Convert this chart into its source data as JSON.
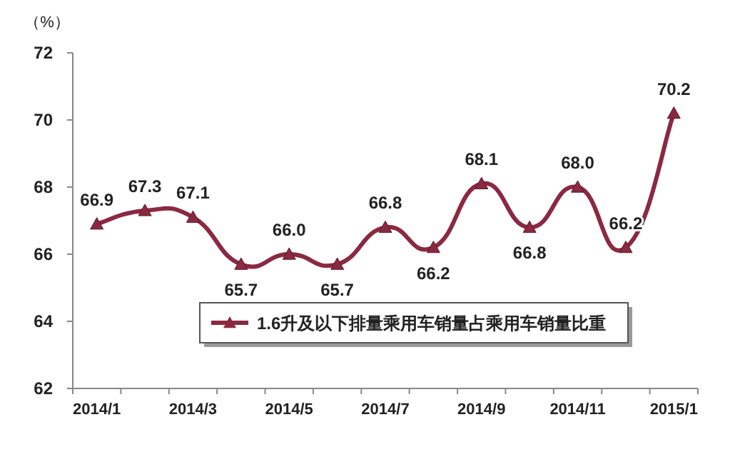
{
  "chart_data": {
    "type": "line",
    "ylabel": "（%）",
    "categories": [
      "2014/1",
      null,
      "2014/3",
      null,
      "2014/5",
      null,
      "2014/7",
      null,
      "2014/9",
      null,
      "2014/11",
      null,
      "2015/1"
    ],
    "series": [
      {
        "name": "1.6升及以下排量乘用车销量占乘用车销量比重",
        "color": "#8b2942",
        "values": [
          66.9,
          67.3,
          67.1,
          65.7,
          66.0,
          65.7,
          66.8,
          66.2,
          68.1,
          66.8,
          68.0,
          66.2,
          70.2
        ],
        "value_labels": [
          "66.9",
          "67.3",
          "67.1",
          "65.7",
          "66.0",
          "65.7",
          "66.8",
          "66.2",
          "68.1",
          "66.8",
          "68.0",
          "66.2",
          "70.2"
        ]
      }
    ],
    "ylim": [
      62,
      72
    ],
    "yticks": [
      62,
      64,
      66,
      68,
      70,
      72
    ],
    "legend": "bottom",
    "marker": "triangle"
  }
}
